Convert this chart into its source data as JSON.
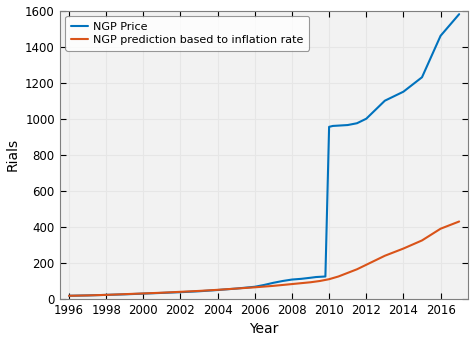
{
  "title": "",
  "xlabel": "Year",
  "ylabel": "Rials",
  "xlim": [
    1995.5,
    2017.5
  ],
  "ylim": [
    0,
    1600
  ],
  "yticks": [
    0,
    200,
    400,
    600,
    800,
    1000,
    1200,
    1400,
    1600
  ],
  "xticks": [
    1996,
    1998,
    2000,
    2002,
    2004,
    2006,
    2008,
    2010,
    2012,
    2014,
    2016
  ],
  "ngp_price_years": [
    1996,
    1997,
    1998,
    1999,
    2000,
    2001,
    2002,
    2003,
    2004,
    2005,
    2006,
    2006.5,
    2007,
    2007.5,
    2008,
    2008.5,
    2009,
    2009.3,
    2009.8,
    2010.0,
    2010.2,
    2011,
    2011.5,
    2012,
    2013,
    2014,
    2015,
    2016,
    2017
  ],
  "ngp_price_values": [
    18,
    20,
    23,
    26,
    30,
    34,
    38,
    43,
    50,
    58,
    68,
    78,
    90,
    100,
    108,
    112,
    118,
    122,
    125,
    955,
    960,
    965,
    975,
    1000,
    1100,
    1150,
    1230,
    1460,
    1580
  ],
  "ngp_pred_years": [
    1996,
    1997,
    1998,
    1999,
    2000,
    2001,
    2002,
    2003,
    2004,
    2005,
    2006,
    2007,
    2008,
    2009,
    2009.5,
    2010,
    2010.5,
    2011,
    2011.5,
    2012,
    2012.5,
    2013,
    2014,
    2015,
    2016,
    2017
  ],
  "ngp_pred_values": [
    18,
    20,
    23,
    27,
    31,
    35,
    40,
    45,
    51,
    58,
    65,
    73,
    83,
    93,
    100,
    110,
    125,
    145,
    165,
    190,
    215,
    240,
    280,
    325,
    390,
    430
  ],
  "ngp_price_color": "#0072BD",
  "ngp_pred_color": "#D95319",
  "legend_label_price": "NGP Price",
  "legend_label_pred": "NGP prediction based to inflation rate",
  "grid_color": "#E6E6E6",
  "plot_bg_color": "#F2F2F2",
  "fig_bg_color": "#FFFFFF",
  "line_width": 1.5,
  "legend_fontsize": 8,
  "axis_fontsize": 10,
  "tick_fontsize": 8.5
}
